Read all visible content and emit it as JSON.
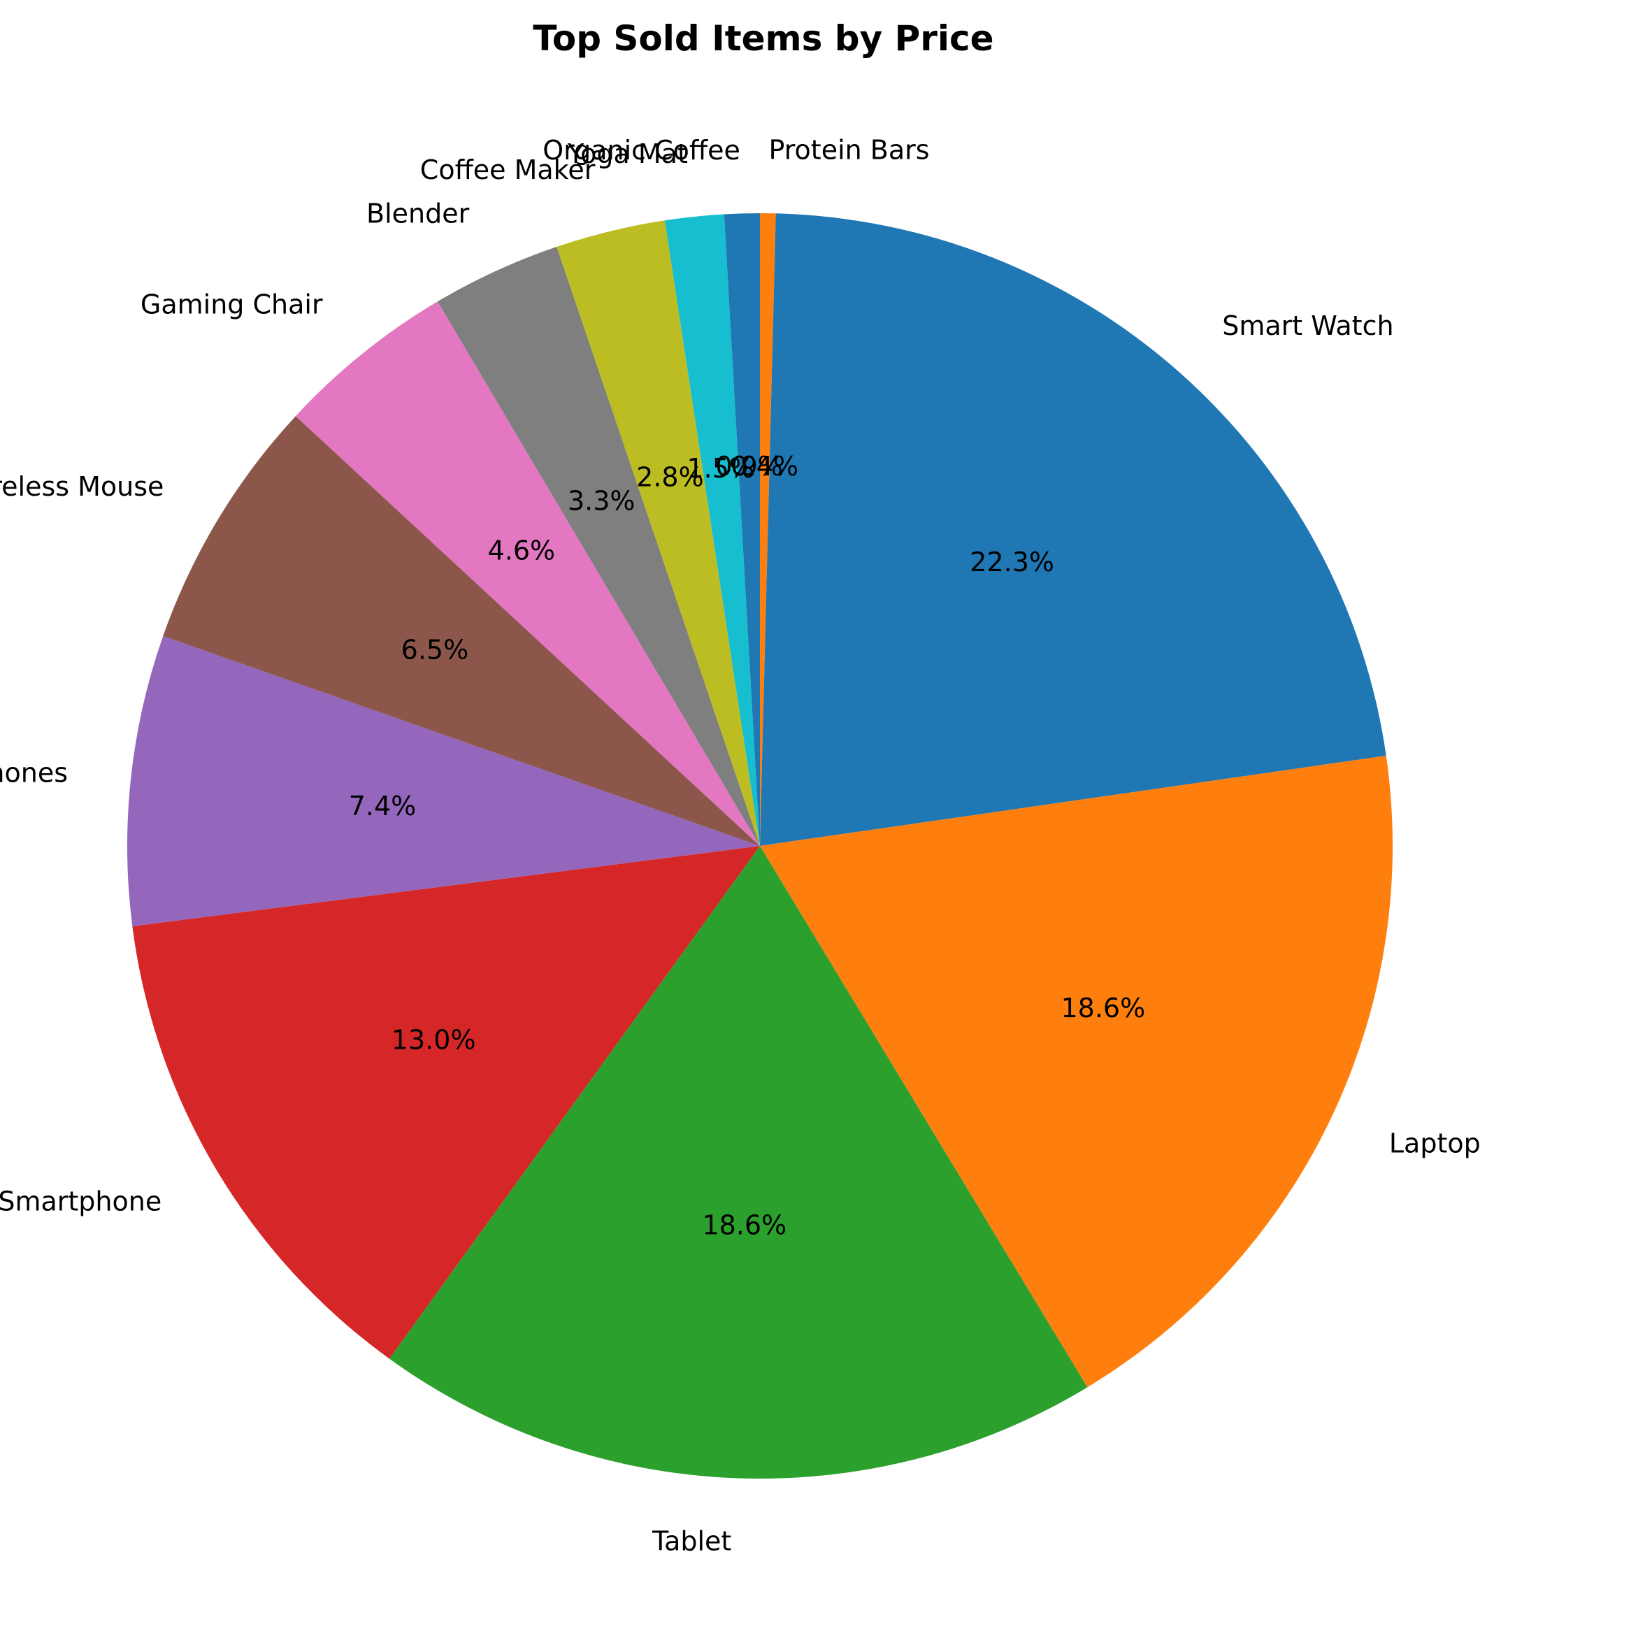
{
  "chart_data": {
    "type": "pie",
    "title": "Top Sold Items by Price",
    "start_angle_deg": 90,
    "direction": "clockwise",
    "slices": [
      {
        "label": "Protein Bars",
        "pct_text": "0.4%",
        "value": 0.4,
        "color": "#ff7f0e"
      },
      {
        "label": "Smart Watch",
        "pct_text": "22.3%",
        "value": 22.3,
        "color": "#1f77b4"
      },
      {
        "label": "Laptop",
        "pct_text": "18.6%",
        "value": 18.6,
        "color": "#ff7f0e"
      },
      {
        "label": "Tablet",
        "pct_text": "18.6%",
        "value": 18.6,
        "color": "#2ca02c"
      },
      {
        "label": "Smartphone",
        "pct_text": "13.0%",
        "value": 13.0,
        "color": "#d62728"
      },
      {
        "label": "Headphones",
        "pct_text": "7.4%",
        "value": 7.4,
        "color": "#9467bd"
      },
      {
        "label": "Wireless Mouse",
        "pct_text": "6.5%",
        "value": 6.5,
        "color": "#8c564b"
      },
      {
        "label": "Gaming Chair",
        "pct_text": "4.6%",
        "value": 4.6,
        "color": "#e377c2"
      },
      {
        "label": "Blender",
        "pct_text": "3.3%",
        "value": 3.3,
        "color": "#7f7f7f"
      },
      {
        "label": "Coffee Maker",
        "pct_text": "2.8%",
        "value": 2.8,
        "color": "#bcbd22"
      },
      {
        "label": "Yoga Mat",
        "pct_text": "1.5%",
        "value": 1.5,
        "color": "#17becf"
      },
      {
        "label": "Organic Coffee",
        "pct_text": "0.9%",
        "value": 0.9,
        "color": "#1f77b4"
      }
    ]
  }
}
